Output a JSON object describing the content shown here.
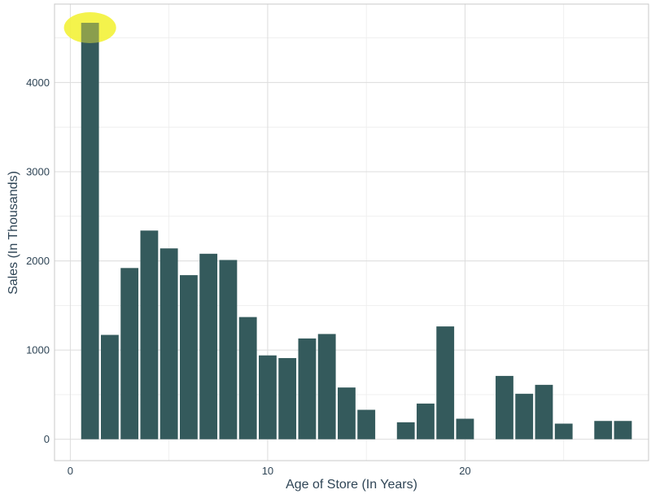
{
  "chart_data": {
    "type": "bar",
    "title": "",
    "xlabel": "Age of Store (In Years)",
    "ylabel": "Sales (In Thousands)",
    "xlim": [
      -0.8,
      29.3
    ],
    "ylim": [
      -240,
      4880
    ],
    "x_ticks": [
      0,
      10,
      20
    ],
    "y_ticks": [
      0,
      1000,
      2000,
      3000,
      4000
    ],
    "grid": true,
    "bar_color": "#345a5c",
    "highlight_color": "#f3f23c",
    "highlight_x": 1,
    "x": [
      1,
      2,
      3,
      4,
      5,
      6,
      7,
      8,
      9,
      10,
      11,
      12,
      13,
      14,
      15,
      17,
      18,
      19,
      20,
      22,
      23,
      24,
      25,
      27,
      28
    ],
    "values": [
      4670,
      1170,
      1920,
      2340,
      2140,
      1840,
      2080,
      2010,
      1370,
      940,
      910,
      1130,
      1180,
      580,
      330,
      190,
      400,
      1265,
      230,
      710,
      510,
      610,
      175,
      205,
      205
    ]
  }
}
